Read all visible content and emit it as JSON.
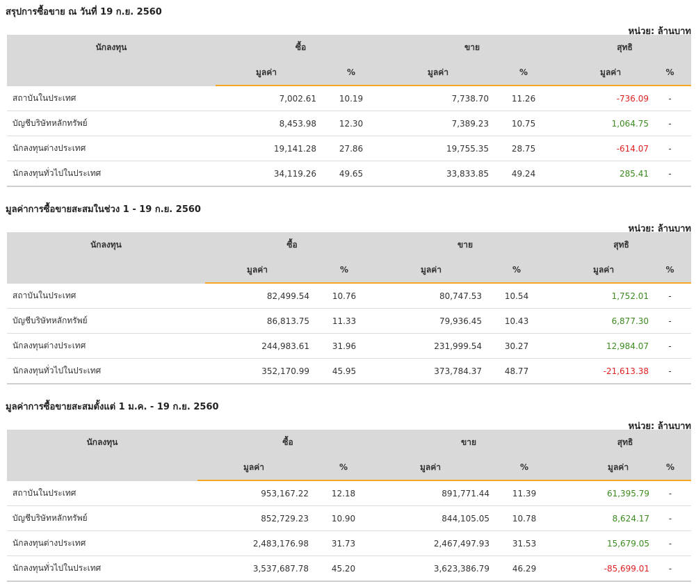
{
  "tables": [
    {
      "title": "สรุปการซื้อขาย ณ วันที่ 19 ก.ย. 2560",
      "unit": "หน่วย: ล้านบาท",
      "header": {
        "investor": "นักลงทุน",
        "buy": "ซื้อ",
        "sell": "ขาย",
        "net": "สุทธิ",
        "value": "มูลค่า",
        "pct": "%"
      },
      "rows": [
        {
          "name": "สถาบันในประเทศ",
          "buy_value": "7,002.61",
          "buy_pct": "10.19",
          "sell_value": "7,738.70",
          "sell_pct": "11.26",
          "net_value": "-736.09",
          "net_sign": "neg",
          "net_pct": "-"
        },
        {
          "name": "บัญชีบริษัทหลักทรัพย์",
          "buy_value": "8,453.98",
          "buy_pct": "12.30",
          "sell_value": "7,389.23",
          "sell_pct": "10.75",
          "net_value": "1,064.75",
          "net_sign": "pos",
          "net_pct": "-"
        },
        {
          "name": "นักลงทุนต่างประเทศ",
          "buy_value": "19,141.28",
          "buy_pct": "27.86",
          "sell_value": "19,755.35",
          "sell_pct": "28.75",
          "net_value": "-614.07",
          "net_sign": "neg",
          "net_pct": "-"
        },
        {
          "name": "นักลงทุนทั่วไปในประเทศ",
          "buy_value": "34,119.26",
          "buy_pct": "49.65",
          "sell_value": "33,833.85",
          "sell_pct": "49.24",
          "net_value": "285.41",
          "net_sign": "pos",
          "net_pct": "-"
        }
      ]
    },
    {
      "title": "มูลค่าการซื้อขายสะสมในช่วง 1 - 19 ก.ย. 2560",
      "unit": "หน่วย: ล้านบาท",
      "header": {
        "investor": "นักลงทุน",
        "buy": "ซื้อ",
        "sell": "ขาย",
        "net": "สุทธิ",
        "value": "มูลค่า",
        "pct": "%"
      },
      "rows": [
        {
          "name": "สถาบันในประเทศ",
          "buy_value": "82,499.54",
          "buy_pct": "10.76",
          "sell_value": "80,747.53",
          "sell_pct": "10.54",
          "net_value": "1,752.01",
          "net_sign": "pos",
          "net_pct": "-"
        },
        {
          "name": "บัญชีบริษัทหลักทรัพย์",
          "buy_value": "86,813.75",
          "buy_pct": "11.33",
          "sell_value": "79,936.45",
          "sell_pct": "10.43",
          "net_value": "6,877.30",
          "net_sign": "pos",
          "net_pct": "-"
        },
        {
          "name": "นักลงทุนต่างประเทศ",
          "buy_value": "244,983.61",
          "buy_pct": "31.96",
          "sell_value": "231,999.54",
          "sell_pct": "30.27",
          "net_value": "12,984.07",
          "net_sign": "pos",
          "net_pct": "-"
        },
        {
          "name": "นักลงทุนทั่วไปในประเทศ",
          "buy_value": "352,170.99",
          "buy_pct": "45.95",
          "sell_value": "373,784.37",
          "sell_pct": "48.77",
          "net_value": "-21,613.38",
          "net_sign": "neg",
          "net_pct": "-"
        }
      ]
    },
    {
      "title": "มูลค่าการซื้อขายสะสมตั้งแต่ 1 ม.ค. - 19 ก.ย. 2560",
      "unit": "หน่วย: ล้านบาท",
      "header": {
        "investor": "นักลงทุน",
        "buy": "ซื้อ",
        "sell": "ขาย",
        "net": "สุทธิ",
        "value": "มูลค่า",
        "pct": "%"
      },
      "rows": [
        {
          "name": "สถาบันในประเทศ",
          "buy_value": "953,167.22",
          "buy_pct": "12.18",
          "sell_value": "891,771.44",
          "sell_pct": "11.39",
          "net_value": "61,395.79",
          "net_sign": "pos",
          "net_pct": "-"
        },
        {
          "name": "บัญชีบริษัทหลักทรัพย์",
          "buy_value": "852,729.23",
          "buy_pct": "10.90",
          "sell_value": "844,105.05",
          "sell_pct": "10.78",
          "net_value": "8,624.17",
          "net_sign": "pos",
          "net_pct": "-"
        },
        {
          "name": "นักลงทุนต่างประเทศ",
          "buy_value": "2,483,176.98",
          "buy_pct": "31.73",
          "sell_value": "2,467,497.93",
          "sell_pct": "31.53",
          "net_value": "15,679.05",
          "net_sign": "pos",
          "net_pct": "-"
        },
        {
          "name": "นักลงทุนทั่วไปในประเทศ",
          "buy_value": "3,537,687.78",
          "buy_pct": "45.20",
          "sell_value": "3,623,386.79",
          "sell_pct": "46.29",
          "net_value": "-85,699.01",
          "net_sign": "neg",
          "net_pct": "-"
        }
      ]
    }
  ],
  "colors": {
    "positive": "#3b8a1f",
    "negative": "#e02020",
    "accent": "#f5a623",
    "header_bg": "#d9d9d9"
  }
}
